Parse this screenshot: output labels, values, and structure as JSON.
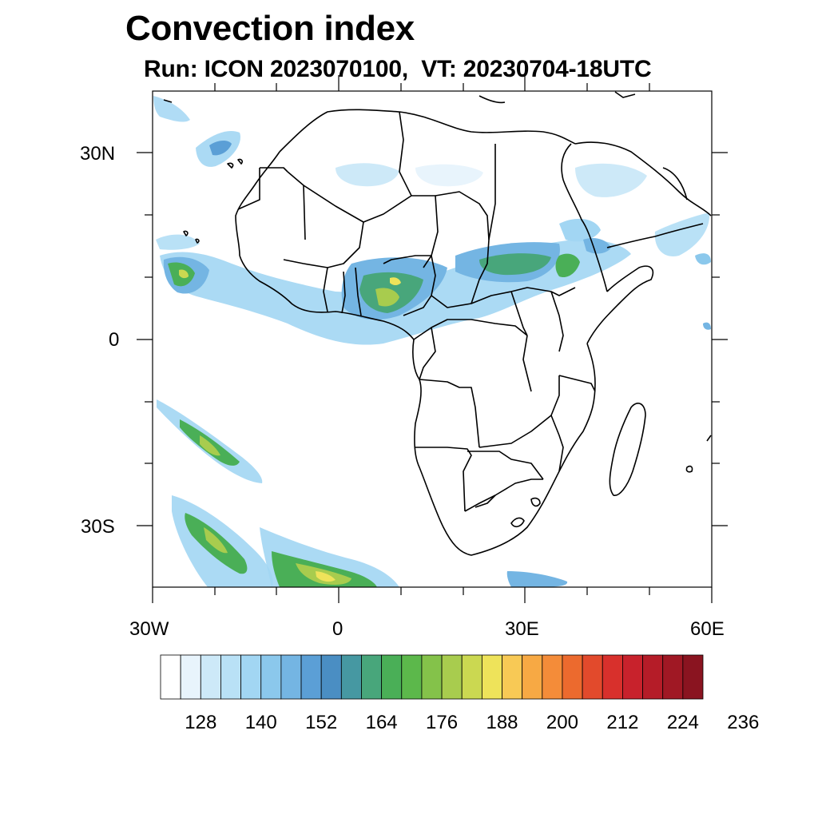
{
  "title": "Convection index",
  "subtitle": "Run: ICON 2023070100,  VT: 20230704-18UTC",
  "axes": {
    "y_ticks": [
      "30N",
      "0",
      "30S"
    ],
    "x_ticks": [
      "30W",
      "0",
      "30E",
      "60E"
    ]
  },
  "colorbar": {
    "colors": [
      "#ffffff",
      "#e8f4fc",
      "#cde9f8",
      "#b9e1f6",
      "#a2d6f3",
      "#8bc8ec",
      "#74b5e3",
      "#5b9fd6",
      "#4a8ec3",
      "#4698a2",
      "#48a67b",
      "#4aaf57",
      "#5cb84b",
      "#84c24a",
      "#a8cc4e",
      "#cbd851",
      "#eee35a",
      "#f8c955",
      "#f7a944",
      "#f48c39",
      "#ec6a2e",
      "#e24a2c",
      "#d8302c",
      "#c8222c",
      "#b51c28",
      "#a01824",
      "#8a1420"
    ],
    "tick_labels": [
      "128",
      "140",
      "152",
      "164",
      "176",
      "188",
      "200",
      "212",
      "224",
      "236"
    ]
  },
  "chart_data": {
    "type": "heatmap",
    "title": "Convection index",
    "subtitle": "Run: ICON 2023070100,  VT: 20230704-18UTC",
    "x_range": [
      -30,
      60
    ],
    "y_range": [
      -40,
      40
    ],
    "x_ticks": [
      "30W",
      "0",
      "30E",
      "60E"
    ],
    "y_ticks": [
      "30N",
      "0",
      "30S"
    ],
    "colorbar_levels": [
      122,
      126,
      130,
      134,
      138,
      142,
      146,
      150,
      154,
      158,
      162,
      166,
      170,
      174,
      178,
      182,
      186,
      190,
      194,
      198,
      202,
      206,
      210,
      214,
      218,
      222,
      226,
      230,
      234,
      238,
      242
    ],
    "colorbar_labels": [
      128,
      140,
      152,
      164,
      176,
      188,
      200,
      212,
      224,
      236
    ]
  }
}
